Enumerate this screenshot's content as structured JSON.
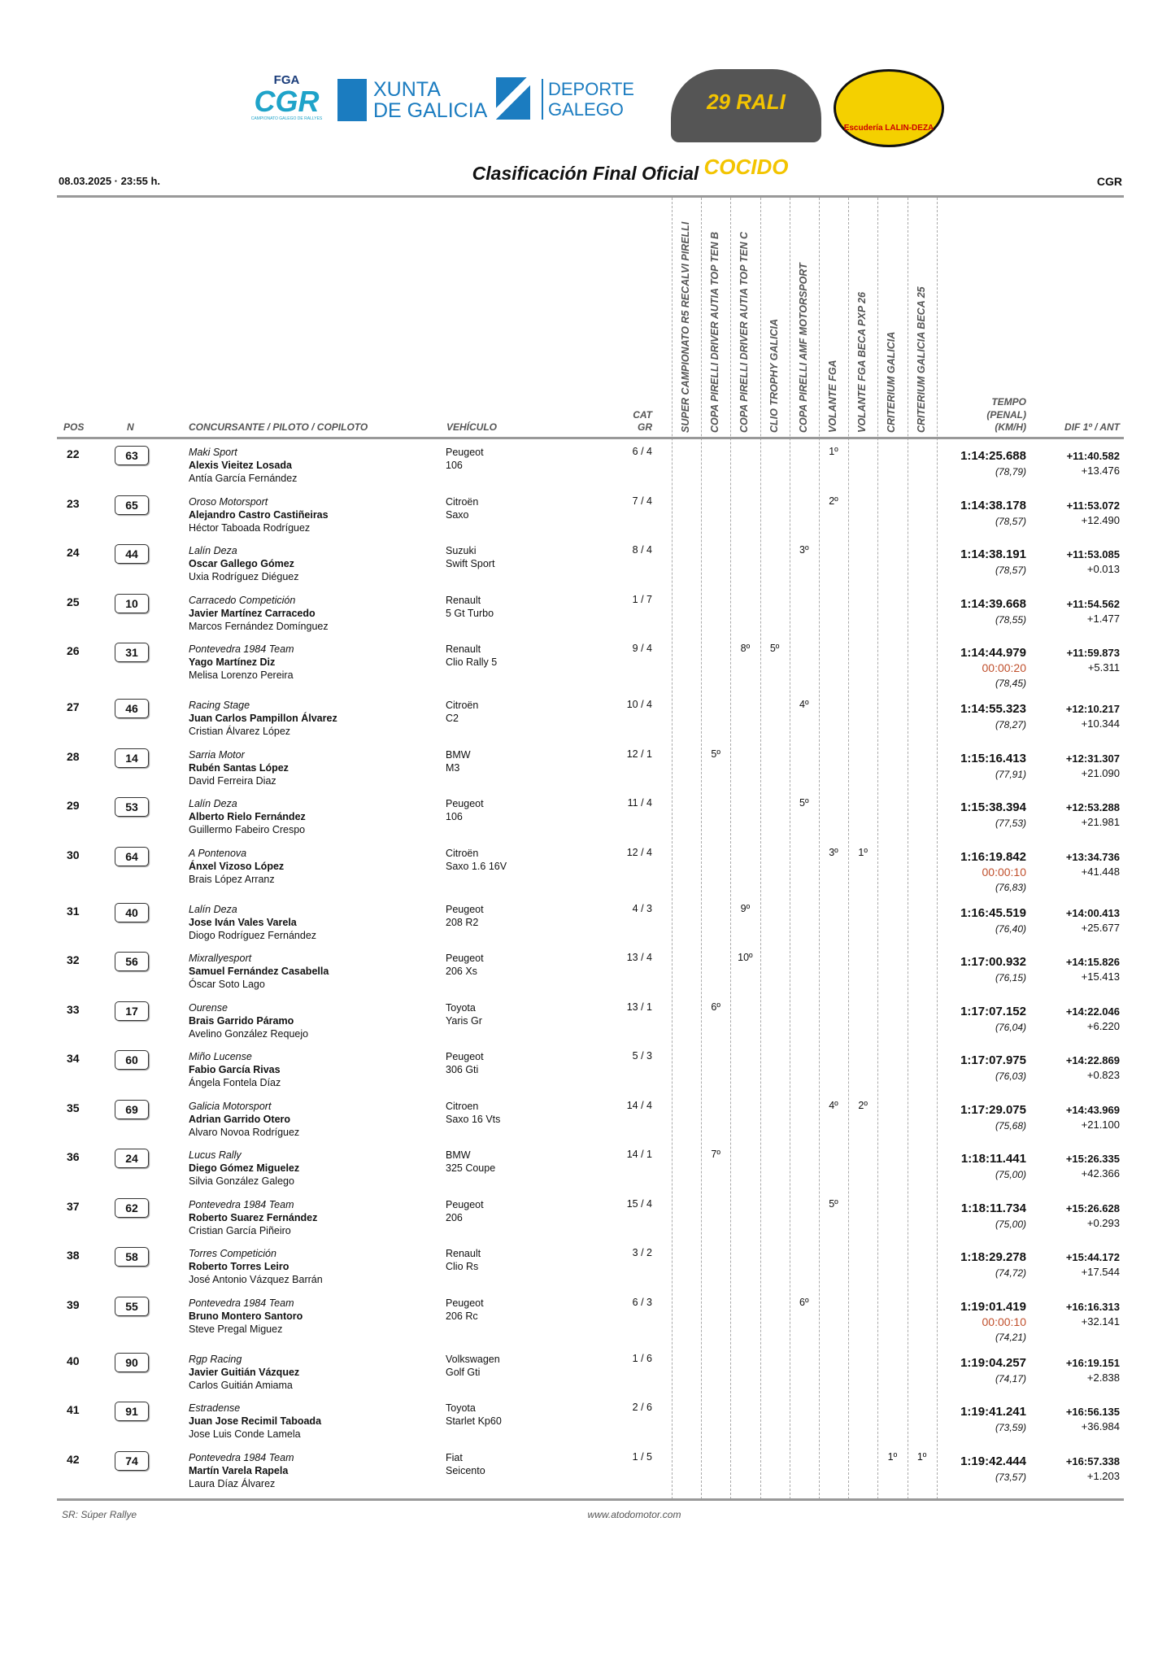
{
  "logos": {
    "fga": "FGA",
    "cgr": "CGR",
    "cgr_sub": "CAMPIONATO GALEGO DE RALLYES",
    "xunta": "XUNTA\nDE GALICIA",
    "deporte": "DEPORTE\nGALEGO",
    "rali": "29 RALI COCIDO",
    "escuderia": "Escudería LALIN-DEZA"
  },
  "header": {
    "date": "08.03.2025 · 23:55 h.",
    "title": "Clasificación Final Oficial",
    "org": "CGR"
  },
  "columns": {
    "pos": "POS",
    "n": "N",
    "entrant": "CONCURSANTE / PILOTO / COPILOTO",
    "vehicle": "VEHÍCULO",
    "cat1": "CAT",
    "cat2": "GR",
    "tempo1": "TEMPO",
    "tempo2": "(PENAL)",
    "tempo3": "(KM/H)",
    "dif": "DIF 1º / ANT",
    "cups": [
      "SUPER CAMPIONATO R5 RECALVI PIRELLI",
      "COPA PIRELLI DRIVER AUTIA TOP TEN B",
      "COPA PIRELLI DRIVER AUTIA TOP TEN C",
      "CLIO TROPHY GALICIA",
      "COPA PIRELLI AMF MOTORSPORT",
      "VOLANTE FGA",
      "VOLANTE FGA BECA PXP 26",
      "CRITERIUM GALICIA",
      "CRITERIUM GALICIA BECA 25"
    ]
  },
  "rows": [
    {
      "pos": "22",
      "n": "63",
      "team": "Maki Sport",
      "driver": "Alexis Vieitez Losada",
      "codriver": "Antía García Fernández",
      "make": "Peugeot",
      "model": "106",
      "cat": "6 / 4",
      "cups": [
        "",
        "",
        "",
        "",
        "",
        "1º",
        "",
        "",
        ""
      ],
      "time": "1:14:25.688",
      "penalty": "",
      "speed": "(78,79)",
      "dif1": "+11:40.582",
      "difprev": "+13.476"
    },
    {
      "pos": "23",
      "n": "65",
      "team": "Oroso Motorsport",
      "driver": "Alejandro Castro Castiñeiras",
      "codriver": "Héctor Taboada Rodríguez",
      "make": "Citroën",
      "model": "Saxo",
      "cat": "7 / 4",
      "cups": [
        "",
        "",
        "",
        "",
        "",
        "2º",
        "",
        "",
        ""
      ],
      "time": "1:14:38.178",
      "penalty": "",
      "speed": "(78,57)",
      "dif1": "+11:53.072",
      "difprev": "+12.490"
    },
    {
      "pos": "24",
      "n": "44",
      "team": "Lalín Deza",
      "driver": "Oscar Gallego Gómez",
      "codriver": "Uxia Rodríguez Diéguez",
      "make": "Suzuki",
      "model": "Swift Sport",
      "cat": "8 / 4",
      "cups": [
        "",
        "",
        "",
        "",
        "3º",
        "",
        "",
        "",
        ""
      ],
      "time": "1:14:38.191",
      "penalty": "",
      "speed": "(78,57)",
      "dif1": "+11:53.085",
      "difprev": "+0.013"
    },
    {
      "pos": "25",
      "n": "10",
      "team": "Carracedo Competición",
      "driver": "Javier Martínez Carracedo",
      "codriver": "Marcos Fernández Domínguez",
      "make": "Renault",
      "model": "5 Gt Turbo",
      "cat": "1 / 7",
      "cups": [
        "",
        "",
        "",
        "",
        "",
        "",
        "",
        "",
        ""
      ],
      "time": "1:14:39.668",
      "penalty": "",
      "speed": "(78,55)",
      "dif1": "+11:54.562",
      "difprev": "+1.477"
    },
    {
      "pos": "26",
      "n": "31",
      "team": "Pontevedra 1984 Team",
      "driver": "Yago Martínez Diz",
      "codriver": "Melisa Lorenzo Pereira",
      "make": "Renault",
      "model": "Clio Rally 5",
      "cat": "9 / 4",
      "cups": [
        "",
        "",
        "8º",
        "5º",
        "",
        "",
        "",
        "",
        ""
      ],
      "time": "1:14:44.979",
      "penalty": "00:00:20",
      "speed": "(78,45)",
      "dif1": "+11:59.873",
      "difprev": "+5.311"
    },
    {
      "pos": "27",
      "n": "46",
      "team": "Racing Stage",
      "driver": "Juan Carlos Pampillon Álvarez",
      "codriver": "Cristian Álvarez López",
      "make": "Citroën",
      "model": "C2",
      "cat": "10 / 4",
      "cups": [
        "",
        "",
        "",
        "",
        "4º",
        "",
        "",
        "",
        ""
      ],
      "time": "1:14:55.323",
      "penalty": "",
      "speed": "(78,27)",
      "dif1": "+12:10.217",
      "difprev": "+10.344"
    },
    {
      "pos": "28",
      "n": "14",
      "team": "Sarria Motor",
      "driver": "Rubén Santas López",
      "codriver": "David Ferreira Diaz",
      "make": "BMW",
      "model": "M3",
      "cat": "12 / 1",
      "cups": [
        "",
        "5º",
        "",
        "",
        "",
        "",
        "",
        "",
        ""
      ],
      "time": "1:15:16.413",
      "penalty": "",
      "speed": "(77,91)",
      "dif1": "+12:31.307",
      "difprev": "+21.090"
    },
    {
      "pos": "29",
      "n": "53",
      "team": "Lalín Deza",
      "driver": "Alberto Rielo Fernández",
      "codriver": "Guillermo Fabeiro Crespo",
      "make": "Peugeot",
      "model": "106",
      "cat": "11 / 4",
      "cups": [
        "",
        "",
        "",
        "",
        "5º",
        "",
        "",
        "",
        ""
      ],
      "time": "1:15:38.394",
      "penalty": "",
      "speed": "(77,53)",
      "dif1": "+12:53.288",
      "difprev": "+21.981"
    },
    {
      "pos": "30",
      "n": "64",
      "team": "A Pontenova",
      "driver": "Ánxel Vizoso López",
      "codriver": "Brais López Arranz",
      "make": "Citroën",
      "model": "Saxo 1.6 16V",
      "cat": "12 / 4",
      "cups": [
        "",
        "",
        "",
        "",
        "",
        "3º",
        "1º",
        "",
        ""
      ],
      "time": "1:16:19.842",
      "penalty": "00:00:10",
      "speed": "(76,83)",
      "dif1": "+13:34.736",
      "difprev": "+41.448"
    },
    {
      "pos": "31",
      "n": "40",
      "team": "Lalín Deza",
      "driver": "Jose Iván Vales Varela",
      "codriver": "Diogo Rodríguez Fernández",
      "make": "Peugeot",
      "model": "208 R2",
      "cat": "4 / 3",
      "cups": [
        "",
        "",
        "9º",
        "",
        "",
        "",
        "",
        "",
        ""
      ],
      "time": "1:16:45.519",
      "penalty": "",
      "speed": "(76,40)",
      "dif1": "+14:00.413",
      "difprev": "+25.677"
    },
    {
      "pos": "32",
      "n": "56",
      "team": "Mixrallyesport",
      "driver": "Samuel Fernández Casabella",
      "codriver": "Óscar Soto Lago",
      "make": "Peugeot",
      "model": "206 Xs",
      "cat": "13 / 4",
      "cups": [
        "",
        "",
        "10º",
        "",
        "",
        "",
        "",
        "",
        ""
      ],
      "time": "1:17:00.932",
      "penalty": "",
      "speed": "(76,15)",
      "dif1": "+14:15.826",
      "difprev": "+15.413"
    },
    {
      "pos": "33",
      "n": "17",
      "team": "Ourense",
      "driver": "Brais Garrido Páramo",
      "codriver": "Avelino González Requejo",
      "make": "Toyota",
      "model": "Yaris Gr",
      "cat": "13 / 1",
      "cups": [
        "",
        "6º",
        "",
        "",
        "",
        "",
        "",
        "",
        ""
      ],
      "time": "1:17:07.152",
      "penalty": "",
      "speed": "(76,04)",
      "dif1": "+14:22.046",
      "difprev": "+6.220"
    },
    {
      "pos": "34",
      "n": "60",
      "team": "Miño Lucense",
      "driver": "Fabio García Rivas",
      "codriver": "Ángela Fontela Díaz",
      "make": "Peugeot",
      "model": "306 Gti",
      "cat": "5 / 3",
      "cups": [
        "",
        "",
        "",
        "",
        "",
        "",
        "",
        "",
        ""
      ],
      "time": "1:17:07.975",
      "penalty": "",
      "speed": "(76,03)",
      "dif1": "+14:22.869",
      "difprev": "+0.823"
    },
    {
      "pos": "35",
      "n": "69",
      "team": "Galicia Motorsport",
      "driver": "Adrian Garrido Otero",
      "codriver": "Alvaro Novoa Rodríguez",
      "make": "Citroen",
      "model": "Saxo 16 Vts",
      "cat": "14 / 4",
      "cups": [
        "",
        "",
        "",
        "",
        "",
        "4º",
        "2º",
        "",
        ""
      ],
      "time": "1:17:29.075",
      "penalty": "",
      "speed": "(75,68)",
      "dif1": "+14:43.969",
      "difprev": "+21.100"
    },
    {
      "pos": "36",
      "n": "24",
      "team": "Lucus Rally",
      "driver": "Diego Gómez Miguelez",
      "codriver": "Silvia González Galego",
      "make": "BMW",
      "model": "325 Coupe",
      "cat": "14 / 1",
      "cups": [
        "",
        "7º",
        "",
        "",
        "",
        "",
        "",
        "",
        ""
      ],
      "time": "1:18:11.441",
      "penalty": "",
      "speed": "(75,00)",
      "dif1": "+15:26.335",
      "difprev": "+42.366"
    },
    {
      "pos": "37",
      "n": "62",
      "team": "Pontevedra 1984 Team",
      "driver": "Roberto Suarez Fernández",
      "codriver": "Cristian García Piñeiro",
      "make": "Peugeot",
      "model": "206",
      "cat": "15 / 4",
      "cups": [
        "",
        "",
        "",
        "",
        "",
        "5º",
        "",
        "",
        ""
      ],
      "time": "1:18:11.734",
      "penalty": "",
      "speed": "(75,00)",
      "dif1": "+15:26.628",
      "difprev": "+0.293"
    },
    {
      "pos": "38",
      "n": "58",
      "team": "Torres Competición",
      "driver": "Roberto Torres Leiro",
      "codriver": "José Antonio Vázquez Barrán",
      "make": "Renault",
      "model": "Clio Rs",
      "cat": "3 / 2",
      "cups": [
        "",
        "",
        "",
        "",
        "",
        "",
        "",
        "",
        ""
      ],
      "time": "1:18:29.278",
      "penalty": "",
      "speed": "(74,72)",
      "dif1": "+15:44.172",
      "difprev": "+17.544"
    },
    {
      "pos": "39",
      "n": "55",
      "team": "Pontevedra 1984 Team",
      "driver": "Bruno Montero Santoro",
      "codriver": "Steve Pregal Miguez",
      "make": "Peugeot",
      "model": "206 Rc",
      "cat": "6 / 3",
      "cups": [
        "",
        "",
        "",
        "",
        "6º",
        "",
        "",
        "",
        ""
      ],
      "time": "1:19:01.419",
      "penalty": "00:00:10",
      "speed": "(74,21)",
      "dif1": "+16:16.313",
      "difprev": "+32.141"
    },
    {
      "pos": "40",
      "n": "90",
      "team": "Rgp Racing",
      "driver": "Javier Guitián Vázquez",
      "codriver": "Carlos Guitián Amiama",
      "make": "Volkswagen",
      "model": "Golf Gti",
      "cat": "1 / 6",
      "cups": [
        "",
        "",
        "",
        "",
        "",
        "",
        "",
        "",
        ""
      ],
      "time": "1:19:04.257",
      "penalty": "",
      "speed": "(74,17)",
      "dif1": "+16:19.151",
      "difprev": "+2.838"
    },
    {
      "pos": "41",
      "n": "91",
      "team": "Estradense",
      "driver": "Juan Jose Recimil Taboada",
      "codriver": "Jose Luis Conde Lamela",
      "make": "Toyota",
      "model": "Starlet Kp60",
      "cat": "2 / 6",
      "cups": [
        "",
        "",
        "",
        "",
        "",
        "",
        "",
        "",
        ""
      ],
      "time": "1:19:41.241",
      "penalty": "",
      "speed": "(73,59)",
      "dif1": "+16:56.135",
      "difprev": "+36.984"
    },
    {
      "pos": "42",
      "n": "74",
      "team": "Pontevedra 1984 Team",
      "driver": "Martín Varela Rapela",
      "codriver": "Laura Díaz Álvarez",
      "make": "Fiat",
      "model": "Seicento",
      "cat": "1 / 5",
      "cups": [
        "",
        "",
        "",
        "",
        "",
        "",
        "",
        "1º",
        "1º"
      ],
      "time": "1:19:42.444",
      "penalty": "",
      "speed": "(73,57)",
      "dif1": "+16:57.338",
      "difprev": "+1.203"
    }
  ],
  "footer": {
    "note": "SR: Súper Rallye",
    "site": "www.atodomotor.com"
  },
  "colors": {
    "penalty": "#c0502d",
    "accent_blue": "#1b7cc0",
    "rule": "#999999"
  }
}
